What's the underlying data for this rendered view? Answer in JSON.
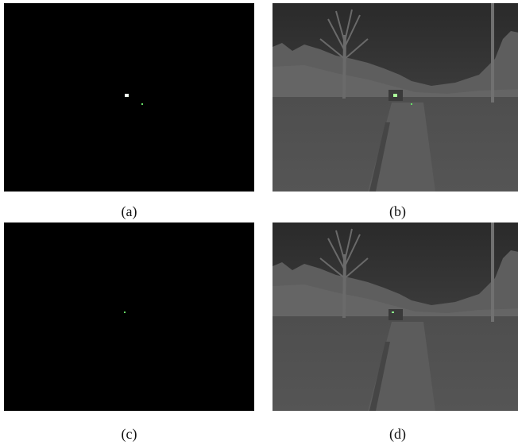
{
  "panels": [
    {
      "id": "a",
      "caption": "(a)",
      "kind": "detection-map",
      "marker_color": "#7CFC7C"
    },
    {
      "id": "b",
      "caption": "(b)",
      "kind": "infrared-scene",
      "marker_color": "#7CFC7C"
    },
    {
      "id": "c",
      "caption": "(c)",
      "kind": "detection-map",
      "marker_color": "#7CFC7C"
    },
    {
      "id": "d",
      "caption": "(d)",
      "kind": "infrared-scene",
      "marker_color": "#7CFC7C"
    }
  ]
}
